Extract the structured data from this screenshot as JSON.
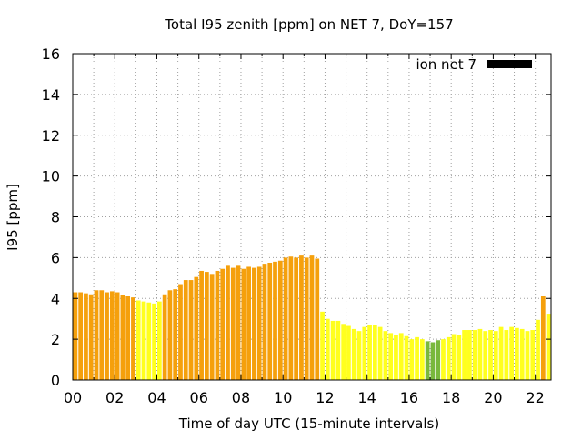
{
  "chart_data": {
    "type": "bar",
    "title": "Total I95 zenith [ppm] on NET 7, DoY=157",
    "xlabel": "Time of day UTC (15-minute intervals)",
    "ylabel": "I95 [ppm]",
    "xlim": [
      0,
      22.75
    ],
    "ylim": [
      0,
      16
    ],
    "x_ticks": [
      "00",
      "02",
      "04",
      "06",
      "08",
      "10",
      "12",
      "14",
      "16",
      "18",
      "20",
      "22"
    ],
    "y_ticks": [
      "0",
      "2",
      "4",
      "6",
      "8",
      "10",
      "12",
      "14",
      "16"
    ],
    "grid": true,
    "legend": {
      "position": "top-right",
      "entries": [
        {
          "label": "ion net 7",
          "color": "#000000"
        }
      ]
    },
    "bar_interval_hours": 0.25,
    "colors": {
      "orange": "#f5a00c",
      "yellow": "#ffff1e",
      "green": "#79b83c"
    },
    "series": [
      {
        "name": "ion net 7",
        "x": [
          0,
          0.25,
          0.5,
          0.75,
          1,
          1.25,
          1.5,
          1.75,
          2,
          2.25,
          2.5,
          2.75,
          3,
          3.25,
          3.5,
          3.75,
          4,
          4.25,
          4.5,
          4.75,
          5,
          5.25,
          5.5,
          5.75,
          6,
          6.25,
          6.5,
          6.75,
          7,
          7.25,
          7.5,
          7.75,
          8,
          8.25,
          8.5,
          8.75,
          9,
          9.25,
          9.5,
          9.75,
          10,
          10.25,
          10.5,
          10.75,
          11,
          11.25,
          11.5,
          11.75,
          12,
          12.25,
          12.5,
          12.75,
          13,
          13.25,
          13.5,
          13.75,
          14,
          14.25,
          14.5,
          14.75,
          15,
          15.25,
          15.5,
          15.75,
          16,
          16.25,
          16.5,
          16.75,
          17,
          17.25,
          17.5,
          17.75,
          18,
          18.25,
          18.5,
          18.75,
          19,
          19.25,
          19.5,
          19.75,
          20,
          20.25,
          20.5,
          20.75,
          21,
          21.25,
          21.5,
          21.75,
          22,
          22.25,
          22.5
        ],
        "values": [
          4.3,
          4.3,
          4.25,
          4.2,
          4.4,
          4.4,
          4.3,
          4.35,
          4.3,
          4.15,
          4.1,
          4.05,
          3.9,
          3.85,
          3.8,
          3.75,
          3.85,
          4.2,
          4.4,
          4.45,
          4.7,
          4.9,
          4.9,
          5.05,
          5.35,
          5.3,
          5.2,
          5.35,
          5.45,
          5.6,
          5.5,
          5.6,
          5.45,
          5.55,
          5.5,
          5.55,
          5.7,
          5.75,
          5.8,
          5.85,
          6.0,
          6.05,
          6.0,
          6.1,
          6.0,
          6.1,
          5.95,
          3.35,
          3.0,
          2.9,
          2.9,
          2.75,
          2.65,
          2.5,
          2.4,
          2.6,
          2.7,
          2.7,
          2.6,
          2.4,
          2.3,
          2.2,
          2.3,
          2.15,
          2.0,
          2.1,
          2.0,
          1.9,
          1.85,
          1.95,
          2.0,
          2.1,
          2.25,
          2.2,
          2.45,
          2.45,
          2.45,
          2.5,
          2.4,
          2.45,
          2.4,
          2.6,
          2.45,
          2.6,
          2.55,
          2.5,
          2.4,
          2.45,
          2.95,
          4.1,
          3.25
        ],
        "colors": [
          "orange",
          "orange",
          "orange",
          "orange",
          "orange",
          "orange",
          "orange",
          "orange",
          "orange",
          "orange",
          "orange",
          "orange",
          "yellow",
          "yellow",
          "yellow",
          "yellow",
          "yellow",
          "orange",
          "orange",
          "orange",
          "orange",
          "orange",
          "orange",
          "orange",
          "orange",
          "orange",
          "orange",
          "orange",
          "orange",
          "orange",
          "orange",
          "orange",
          "orange",
          "orange",
          "orange",
          "orange",
          "orange",
          "orange",
          "orange",
          "orange",
          "orange",
          "orange",
          "orange",
          "orange",
          "orange",
          "orange",
          "orange",
          "yellow",
          "yellow",
          "yellow",
          "yellow",
          "yellow",
          "yellow",
          "yellow",
          "yellow",
          "yellow",
          "yellow",
          "yellow",
          "yellow",
          "yellow",
          "yellow",
          "yellow",
          "yellow",
          "yellow",
          "yellow",
          "yellow",
          "yellow",
          "green",
          "green",
          "green",
          "yellow",
          "yellow",
          "yellow",
          "yellow",
          "yellow",
          "yellow",
          "yellow",
          "yellow",
          "yellow",
          "yellow",
          "yellow",
          "yellow",
          "yellow",
          "yellow",
          "yellow",
          "yellow",
          "yellow",
          "yellow",
          "yellow",
          "orange",
          "yellow"
        ]
      }
    ]
  }
}
